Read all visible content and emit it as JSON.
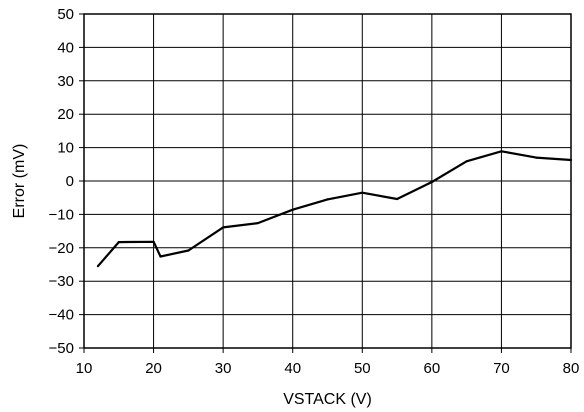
{
  "chart_data": {
    "type": "line",
    "xlabel": "VSTACK (V)",
    "ylabel": "Error (mV)",
    "xlim": [
      10,
      80
    ],
    "ylim": [
      -50,
      50
    ],
    "x_ticks": [
      10,
      20,
      30,
      40,
      50,
      60,
      70,
      80
    ],
    "y_ticks": [
      50,
      40,
      30,
      20,
      10,
      0,
      -10,
      -20,
      -30,
      -40,
      -50
    ],
    "x_tick_labels": [
      "10",
      "20",
      "30",
      "40",
      "50",
      "60",
      "70",
      "80"
    ],
    "y_tick_labels": [
      "50",
      "40",
      "30",
      "20",
      "10",
      "0",
      "−10",
      "−20",
      "−30",
      "−40",
      "−50"
    ],
    "grid": true,
    "series": [
      {
        "color": "#000000",
        "x": [
          12,
          15,
          20,
          21,
          25,
          30,
          35,
          40,
          45,
          50,
          55,
          60,
          65,
          70,
          75,
          80
        ],
        "y": [
          -25.5,
          -18.3,
          -18.2,
          -22.6,
          -20.8,
          -13.9,
          -12.6,
          -8.6,
          -5.5,
          -3.5,
          -5.4,
          -0.3,
          5.9,
          8.9,
          7,
          6.3
        ]
      }
    ]
  }
}
